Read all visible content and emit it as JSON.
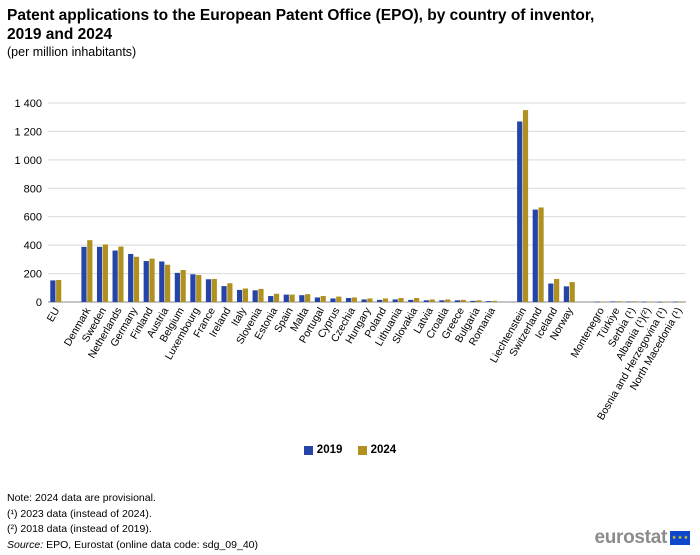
{
  "title": "Patent applications to the European Patent Office (EPO), by country of inventor, 2019 and 2024",
  "subtitle": "(per million inhabitants)",
  "chart_data": {
    "type": "bar",
    "ylim": [
      0,
      1400
    ],
    "yticks": [
      "0",
      "200",
      "400",
      "600",
      "800",
      "1 000",
      "1 200",
      "1 400"
    ],
    "ytick_values": [
      0,
      200,
      400,
      600,
      800,
      1000,
      1200,
      1400
    ],
    "grid": true,
    "legend_placement": "bottom",
    "categories": [
      "EU",
      "",
      "Denmark",
      "Sweden",
      "Netherlands",
      "Germany",
      "Finland",
      "Austria",
      "Belgium",
      "Luxembourg",
      "France",
      "Ireland",
      "Italy",
      "Slovenia",
      "Estonia",
      "Spain",
      "Malta",
      "Portugal",
      "Cyprus",
      "Czechia",
      "Hungary",
      "Poland",
      "Lithuania",
      "Slovakia",
      "Latvia",
      "Croatia",
      "Greece",
      "Bulgaria",
      "Romania",
      "",
      "Liechtenstein",
      "Switzerland",
      "Iceland",
      "Norway",
      "",
      "Montenegro",
      "Türkiye",
      "Serbia (¹)",
      "Albania (¹)(²)",
      "Bosnia and Herzegovina (¹)",
      "North Macedonia (¹)"
    ],
    "series": [
      {
        "name": "2019",
        "color": "#2644a7",
        "values": [
          152,
          null,
          388,
          388,
          362,
          338,
          288,
          285,
          205,
          195,
          160,
          112,
          85,
          82,
          42,
          52,
          48,
          32,
          25,
          28,
          18,
          15,
          18,
          15,
          12,
          12,
          12,
          8,
          6,
          null,
          1270,
          650,
          130,
          110,
          null,
          2,
          4,
          3,
          2,
          1,
          2
        ]
      },
      {
        "name": "2024",
        "color": "#b09120",
        "values": [
          155,
          null,
          435,
          405,
          390,
          318,
          305,
          262,
          225,
          190,
          162,
          132,
          95,
          92,
          58,
          52,
          55,
          42,
          38,
          32,
          25,
          25,
          28,
          28,
          18,
          18,
          15,
          12,
          8,
          null,
          1350,
          665,
          162,
          140,
          null,
          3,
          5,
          5,
          3,
          3,
          4
        ]
      }
    ]
  },
  "legend": {
    "label_2019": "2019",
    "label_2024": "2024"
  },
  "notes": {
    "line1": "Note: 2024 data are provisional.",
    "line2": "(¹) 2023 data (instead of 2024).",
    "line3": "(²) 2018 data (instead of 2019).",
    "source_label": "Source:",
    "source_text": " EPO, Eurostat (online data code: sdg_09_40)"
  },
  "logo": {
    "text": "eurostat"
  }
}
